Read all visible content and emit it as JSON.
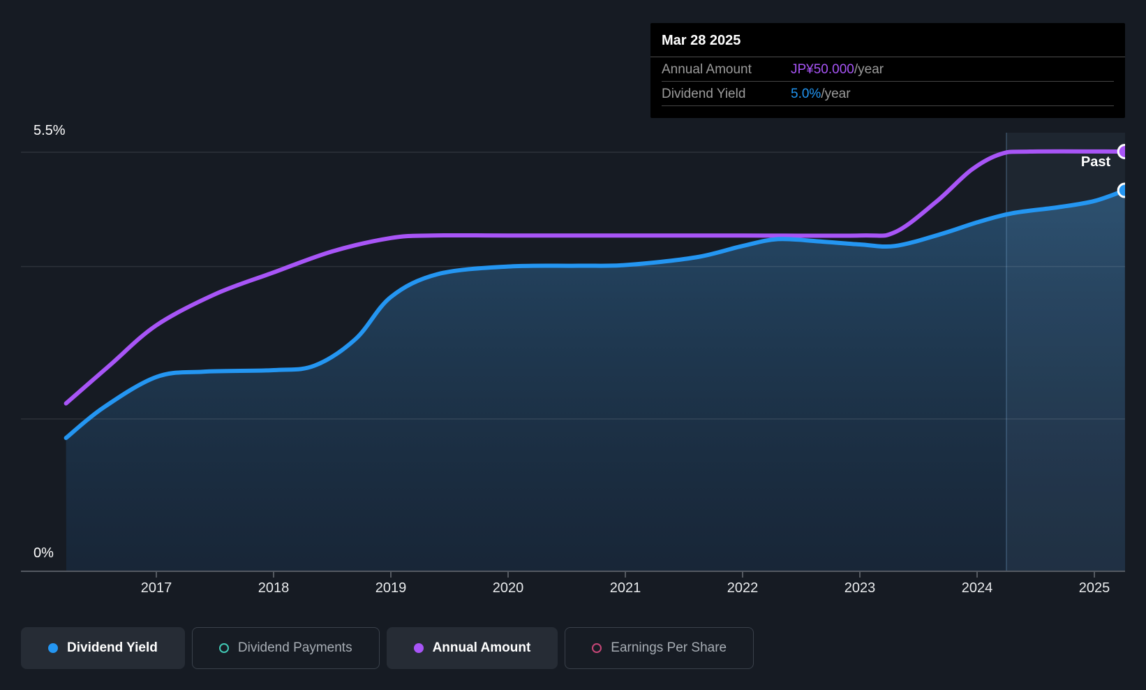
{
  "page": {
    "background": "#161B23"
  },
  "tooltip": {
    "date": "Mar 28 2025",
    "rows": [
      {
        "label": "Annual Amount",
        "value": "JP¥50.000",
        "suffix": "/year",
        "value_color": "#A855F7"
      },
      {
        "label": "Dividend Yield",
        "value": "5.0%",
        "suffix": "/year",
        "value_color": "#2196F3"
      }
    ]
  },
  "axes": {
    "y_top_label": "5.5%",
    "y_bottom_label": "0%",
    "x_labels": [
      "2017",
      "2018",
      "2019",
      "2020",
      "2021",
      "2022",
      "2023",
      "2024",
      "2025"
    ]
  },
  "past_label": "Past",
  "legend": [
    {
      "label": "Dividend Yield",
      "color": "#2496F2",
      "style": "filled",
      "active": true
    },
    {
      "label": "Dividend Payments",
      "color": "#41C8B4",
      "style": "hollow",
      "active": false
    },
    {
      "label": "Annual Amount",
      "color": "#A855F7",
      "style": "filled",
      "active": true
    },
    {
      "label": "Earnings Per Share",
      "color": "#C64677",
      "style": "hollow",
      "active": false
    }
  ],
  "chart_data": {
    "type": "area",
    "title": "Dividend yield and payments history",
    "x_axis": {
      "tick_labels": [
        "2017",
        "2018",
        "2019",
        "2020",
        "2021",
        "2022",
        "2023",
        "2024",
        "2025"
      ],
      "range_years": [
        2016.23,
        2025.26
      ]
    },
    "y_axis": {
      "unit": "%",
      "min": 0,
      "max": 5.5,
      "shown_labels": [
        "5.5%",
        "0%"
      ],
      "gridlines_percent": [
        5.5,
        4,
        2,
        0
      ]
    },
    "series": [
      {
        "name": "Dividend Yield",
        "color": "#2496F2",
        "unit": "%",
        "axis": "percent",
        "fill_area": true,
        "end_value_label": "5.0%/year",
        "points": [
          [
            2016.23,
            1.75
          ],
          [
            2016.55,
            2.15
          ],
          [
            2017.0,
            2.55
          ],
          [
            2017.4,
            2.62
          ],
          [
            2018.0,
            2.64
          ],
          [
            2018.35,
            2.7
          ],
          [
            2018.7,
            3.05
          ],
          [
            2019.0,
            3.6
          ],
          [
            2019.4,
            3.9
          ],
          [
            2020.0,
            4.0
          ],
          [
            2020.6,
            4.01
          ],
          [
            2021.0,
            4.02
          ],
          [
            2021.6,
            4.12
          ],
          [
            2022.0,
            4.27
          ],
          [
            2022.3,
            4.36
          ],
          [
            2022.65,
            4.33
          ],
          [
            2023.0,
            4.29
          ],
          [
            2023.3,
            4.27
          ],
          [
            2023.7,
            4.43
          ],
          [
            2024.0,
            4.58
          ],
          [
            2024.3,
            4.7
          ],
          [
            2024.7,
            4.78
          ],
          [
            2025.0,
            4.86
          ],
          [
            2025.26,
            5.0
          ]
        ]
      },
      {
        "name": "Annual Amount",
        "color": "#A855F7",
        "unit": "JP¥/year",
        "axis": "amount",
        "end_value_label": "JP¥50.000/year",
        "amount_scale_max": 50,
        "points": [
          [
            2016.23,
            20.0
          ],
          [
            2016.6,
            24.5
          ],
          [
            2017.0,
            29.3
          ],
          [
            2017.5,
            33.0
          ],
          [
            2018.0,
            35.6
          ],
          [
            2018.5,
            38.1
          ],
          [
            2019.0,
            39.7
          ],
          [
            2019.35,
            40.0
          ],
          [
            2020.0,
            40.0
          ],
          [
            2021.0,
            40.0
          ],
          [
            2022.0,
            40.0
          ],
          [
            2023.0,
            40.0
          ],
          [
            2023.3,
            40.4
          ],
          [
            2023.65,
            44.0
          ],
          [
            2023.95,
            47.8
          ],
          [
            2024.2,
            49.7
          ],
          [
            2024.45,
            50.0
          ],
          [
            2025.26,
            50.0
          ]
        ]
      }
    ],
    "inactive_series": [
      "Dividend Payments",
      "Earnings Per Share"
    ],
    "highlight_band": {
      "from_year": 2024.25,
      "to_year": 2025.26,
      "label": "Past"
    },
    "legend_position": "bottom"
  }
}
